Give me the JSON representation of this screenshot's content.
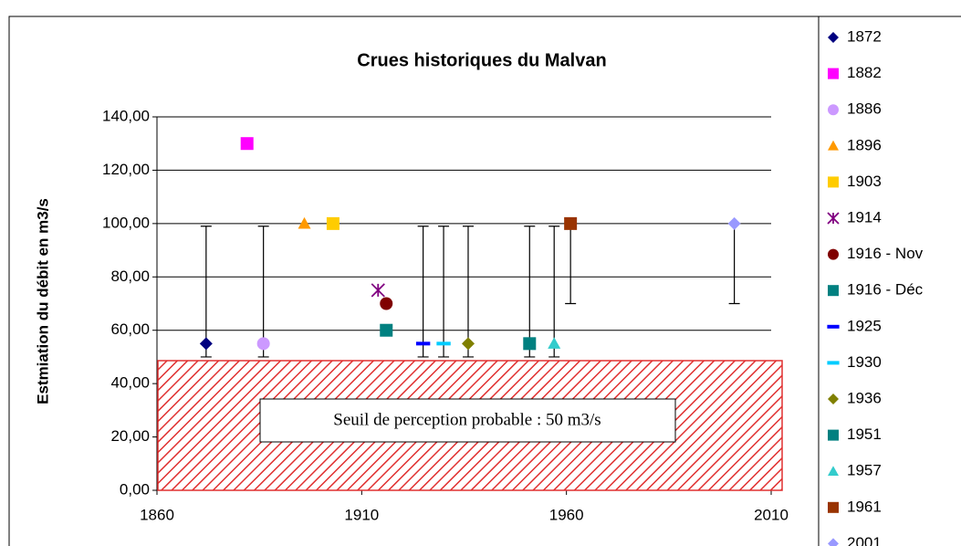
{
  "chart_data": {
    "type": "scatter",
    "title": "Crues historiques du Malvan",
    "y_label": "Estmiation du débit en m3/s",
    "annotation": "Seuil de perception probable : 50 m3/s",
    "xlim": [
      1860,
      2010
    ],
    "xticks": [
      1860,
      1910,
      1960,
      2010
    ],
    "ylim": [
      0,
      140
    ],
    "yticks": [
      {
        "value": 0,
        "label": "0,00"
      },
      {
        "value": 20,
        "label": "20,00"
      },
      {
        "value": 40,
        "label": "40,00"
      },
      {
        "value": 60,
        "label": "60,00"
      },
      {
        "value": 80,
        "label": "80,00"
      },
      {
        "value": 100,
        "label": "100,00"
      },
      {
        "value": 120,
        "label": "120,00"
      },
      {
        "value": 140,
        "label": "140,00"
      }
    ],
    "grid": true,
    "legend": "right",
    "series": [
      {
        "name": "1872",
        "color": "#000080",
        "marker": "diamond",
        "x": [
          1872
        ],
        "values": [
          55
        ],
        "error_minus": [
          5
        ],
        "error_plus": [
          44
        ]
      },
      {
        "name": "1882",
        "color": "#ff00ff",
        "marker": "square",
        "x": [
          1882
        ],
        "values": [
          130
        ]
      },
      {
        "name": "1886",
        "color": "#cc99ff",
        "marker": "circle",
        "x": [
          1886
        ],
        "values": [
          55
        ],
        "error_minus": [
          5
        ],
        "error_plus": [
          44
        ]
      },
      {
        "name": "1896",
        "color": "#ff9900",
        "marker": "triangle",
        "x": [
          1896
        ],
        "values": [
          100
        ]
      },
      {
        "name": "1903",
        "color": "#ffcc00",
        "marker": "square",
        "x": [
          1903
        ],
        "values": [
          100
        ]
      },
      {
        "name": "1914",
        "color": "#800080",
        "marker": "star",
        "x": [
          1914
        ],
        "values": [
          75
        ]
      },
      {
        "name": "1916 - Nov",
        "color": "#800000",
        "marker": "circle",
        "x": [
          1916
        ],
        "values": [
          70
        ]
      },
      {
        "name": "1916 - Déc",
        "color": "#008080",
        "marker": "square",
        "x": [
          1916
        ],
        "values": [
          60
        ]
      },
      {
        "name": "1925",
        "color": "#0000ff",
        "marker": "dash",
        "x": [
          1925
        ],
        "values": [
          55
        ],
        "error_minus": [
          5
        ],
        "error_plus": [
          44
        ]
      },
      {
        "name": "1930",
        "color": "#00ccff",
        "marker": "dash",
        "x": [
          1930
        ],
        "values": [
          55
        ],
        "error_minus": [
          5
        ],
        "error_plus": [
          44
        ]
      },
      {
        "name": "1936",
        "color": "#808000",
        "marker": "diamond",
        "x": [
          1936
        ],
        "values": [
          55
        ],
        "error_minus": [
          5
        ],
        "error_plus": [
          44
        ]
      },
      {
        "name": "1951",
        "color": "#008080",
        "marker": "square",
        "x": [
          1951
        ],
        "values": [
          55
        ],
        "error_minus": [
          5
        ],
        "error_plus": [
          44
        ]
      },
      {
        "name": "1957",
        "color": "#33cccc",
        "marker": "triangle",
        "x": [
          1957
        ],
        "values": [
          55
        ],
        "error_minus": [
          5
        ],
        "error_plus": [
          44
        ]
      },
      {
        "name": "1961",
        "color": "#993300",
        "marker": "square",
        "x": [
          1961
        ],
        "values": [
          100
        ],
        "error_minus": [
          30
        ],
        "error_plus": [
          0
        ]
      },
      {
        "name": "2001",
        "color": "#9999ff",
        "marker": "diamond",
        "x": [
          2001
        ],
        "values": [
          100
        ],
        "error_minus": [
          30
        ],
        "error_plus": [
          0
        ]
      }
    ]
  }
}
